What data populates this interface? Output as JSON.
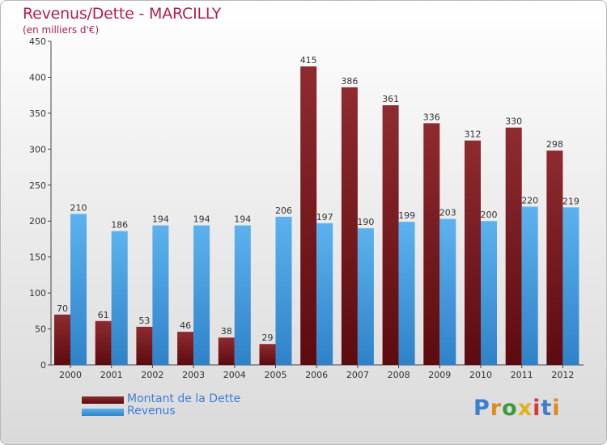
{
  "header": {
    "title": "Revenus/Dette - MARCILLY",
    "subtitle": "(en milliers d'€)"
  },
  "colors": {
    "title": "#b02150",
    "dette": "#7a1a1e",
    "revenus": "#4aa0e0",
    "legend_text": "#3c7dd9",
    "axis": "#444444"
  },
  "chart_data": {
    "type": "bar",
    "categories": [
      "2000",
      "2001",
      "2002",
      "2003",
      "2004",
      "2005",
      "2006",
      "2007",
      "2008",
      "2009",
      "2010",
      "2011",
      "2012"
    ],
    "series": [
      {
        "name": "Montant de la Dette",
        "values": [
          70,
          61,
          53,
          46,
          38,
          29,
          415,
          386,
          361,
          336,
          312,
          330,
          298
        ]
      },
      {
        "name": "Revenus",
        "values": [
          210,
          186,
          194,
          194,
          194,
          206,
          197,
          190,
          199,
          203,
          200,
          220,
          219
        ]
      }
    ],
    "title": "Revenus/Dette - MARCILLY",
    "subtitle": "(en milliers d'€)",
    "xlabel": "",
    "ylabel": "",
    "ylim": [
      0,
      450
    ],
    "yticks": [
      0,
      50,
      100,
      150,
      200,
      250,
      300,
      350,
      400,
      450
    ],
    "grid": false,
    "legend": "bottom-left"
  },
  "legend": {
    "items": [
      {
        "label": "Montant de la Dette"
      },
      {
        "label": "Revenus"
      }
    ]
  },
  "logo": {
    "text": "Proxiti",
    "letter_colors": [
      "#3a7fd0",
      "#e08a1e",
      "#3a9b3a",
      "#e0b21e",
      "#d53a3a",
      "#3a7fd0",
      "#e08a1e"
    ]
  }
}
